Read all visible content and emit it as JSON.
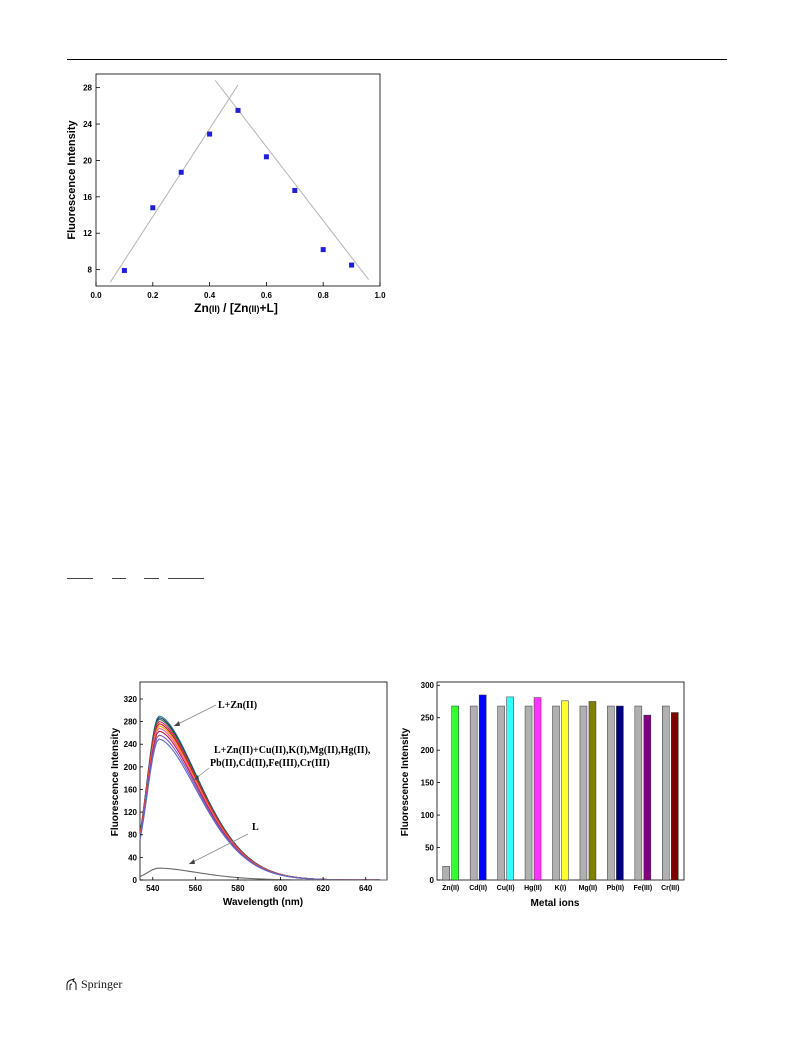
{
  "figure1": {
    "chart_data": {
      "type": "scatter",
      "xlabel_parts": [
        "Zn",
        "(II)",
        " / [Zn",
        "(II)",
        "+L]"
      ],
      "ylabel": "Fluorescence Intensity",
      "xlim": [
        0.0,
        1.0
      ],
      "ylim": [
        6.2,
        29.5
      ],
      "xticks": [
        0.0,
        0.2,
        0.4,
        0.6,
        0.8,
        1.0
      ],
      "xtick_labels": [
        "0.0",
        "0.2",
        "0.4",
        "0.6",
        "0.8",
        "1.0"
      ],
      "yticks": [
        8,
        12,
        16,
        20,
        24,
        28
      ],
      "ytick_labels": [
        "8",
        "12",
        "16",
        "20",
        "24",
        "28"
      ],
      "series": [
        {
          "x": [
            0.1,
            0.2,
            0.3,
            0.4,
            0.5,
            0.6,
            0.7,
            0.8,
            0.9
          ],
          "y": [
            7.9,
            14.8,
            18.7,
            22.9,
            25.5,
            20.4,
            16.7,
            10.2,
            8.5
          ]
        }
      ],
      "fit_lines": [
        {
          "x": [
            0.05,
            0.5
          ],
          "y": [
            6.6,
            28.3
          ]
        },
        {
          "x": [
            0.42,
            0.96
          ],
          "y": [
            28.8,
            6.9
          ]
        }
      ],
      "marker_color": "#1f1fd6",
      "line_color": "#b4b4b4"
    }
  },
  "figure2a": {
    "chart_data": {
      "type": "line",
      "xlabel": "Wavelength (nm)",
      "ylabel": "Fluorescence Intensity",
      "xlim": [
        534,
        650
      ],
      "ylim": [
        0,
        350
      ],
      "xticks": [
        540,
        560,
        580,
        600,
        620,
        640
      ],
      "xtick_labels": [
        "540",
        "560",
        "580",
        "600",
        "620",
        "640"
      ],
      "yticks": [
        0,
        40,
        80,
        120,
        160,
        200,
        240,
        280,
        320
      ],
      "ytick_labels": [
        "0",
        "40",
        "80",
        "120",
        "160",
        "200",
        "240",
        "280",
        "320"
      ],
      "annotations": [
        "L+Zn(II)",
        "L+Zn(II)+Cu(II),K(I),Mg(II),Hg(II),",
        "Pb(II),Cd(II),Fe(III),Cr(III)",
        "L"
      ],
      "peak_wavelength": 543,
      "series": [
        {
          "peak": 290,
          "color": "#3a8a8a"
        },
        {
          "peak": 287,
          "color": "#1a237e"
        },
        {
          "peak": 284,
          "color": "#2e7d32"
        },
        {
          "peak": 280,
          "color": "#e91e63"
        },
        {
          "peak": 276,
          "color": "#b71c1c"
        },
        {
          "peak": 272,
          "color": "#ff9800"
        },
        {
          "peak": 268,
          "color": "#f06292"
        },
        {
          "peak": 263,
          "color": "#c2185b"
        },
        {
          "peak": 256,
          "color": "#7e57c2"
        },
        {
          "peak": 249,
          "color": "#5c6bc0"
        },
        {
          "peak": 21,
          "color": "#666666"
        }
      ]
    }
  },
  "figure2b": {
    "chart_data": {
      "type": "bar",
      "xlabel": "Metal ions",
      "ylabel": "Fluorescence Intensity",
      "ylim": [
        0,
        305
      ],
      "yticks": [
        0,
        50,
        100,
        150,
        200,
        250,
        300
      ],
      "ytick_labels": [
        "0",
        "50",
        "100",
        "150",
        "200",
        "250",
        "300"
      ],
      "categories": [
        "Zn(II)",
        "Cd(II)",
        "Cu(II)",
        "Hg(II)",
        "K(I)",
        "Mg(II)",
        "Pb(II)",
        "Fe(III)",
        "Cr(III)"
      ],
      "series": [
        {
          "values": [
            21,
            268,
            268,
            268,
            268,
            268,
            268,
            268,
            268
          ],
          "color": "#b0b0b0"
        },
        {
          "values": [
            268,
            285,
            282,
            281,
            276,
            275,
            268,
            254,
            258
          ],
          "colors": [
            "#33ff33",
            "#0000ff",
            "#33ffff",
            "#ff33ff",
            "#ffff33",
            "#808000",
            "#000080",
            "#800080",
            "#800000"
          ]
        }
      ]
    }
  },
  "footer": {
    "publisher": "Springer"
  }
}
